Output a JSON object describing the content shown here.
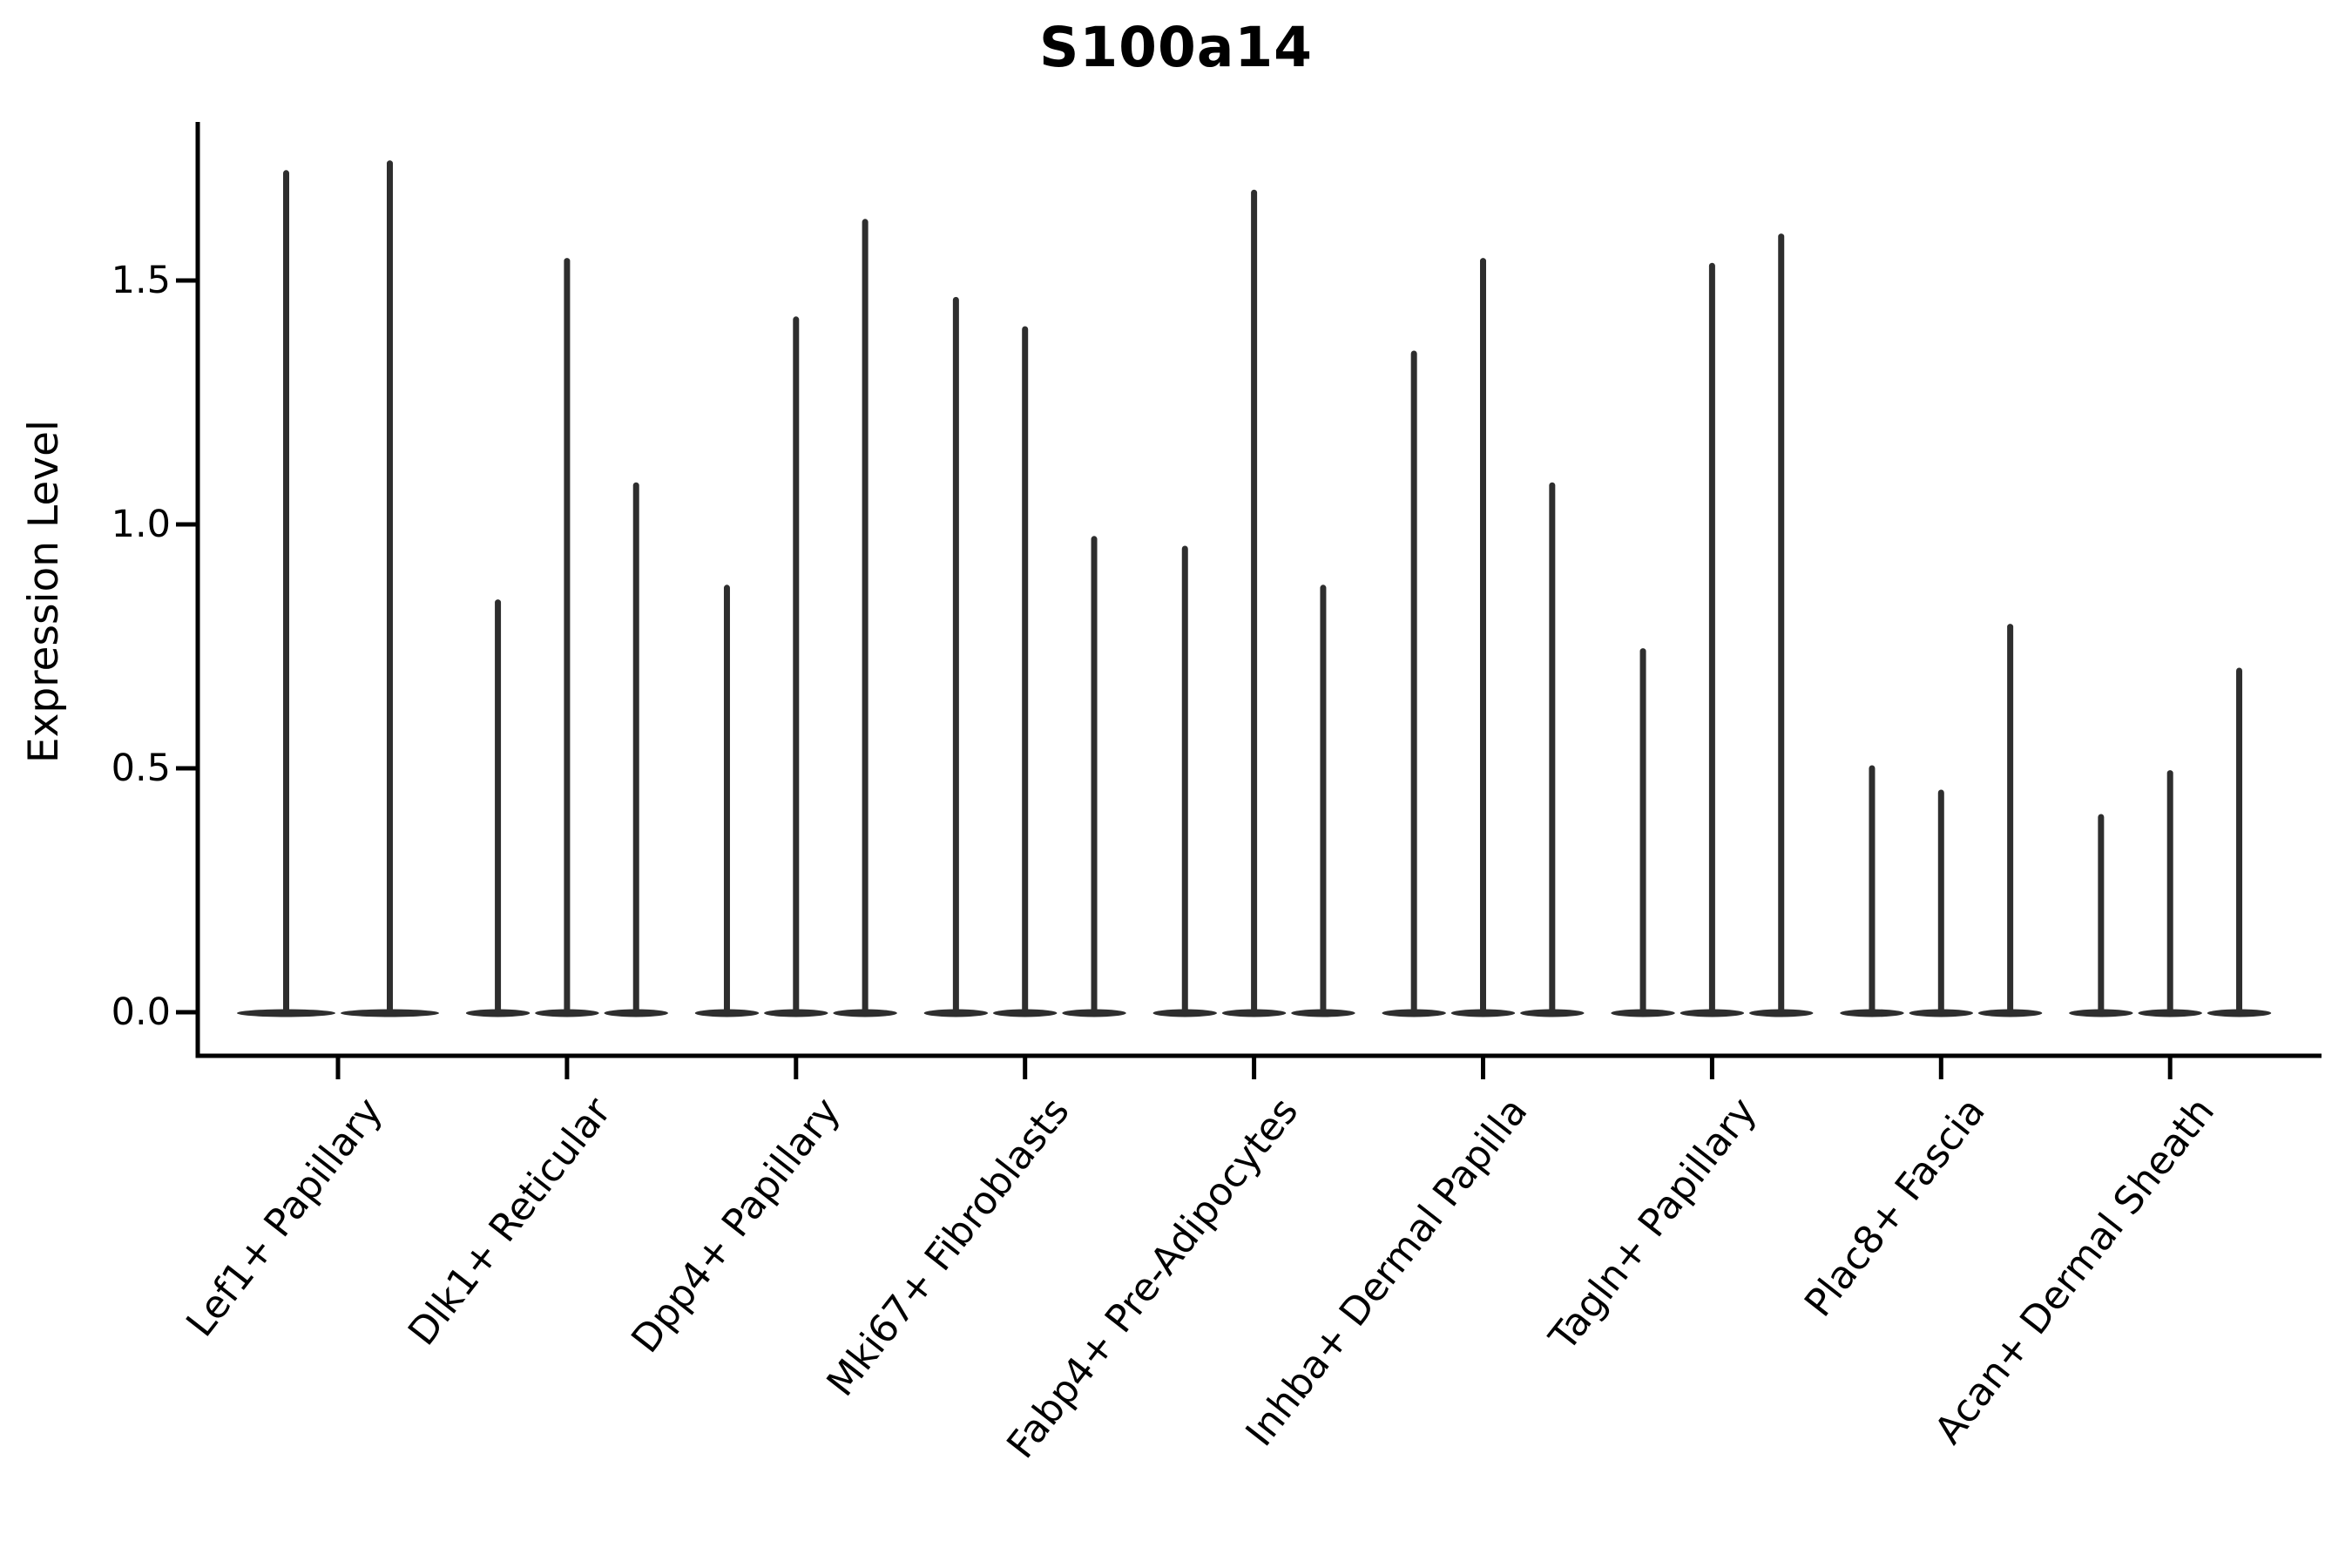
{
  "chart_data": {
    "type": "violin",
    "title": "S100a14",
    "ylabel": "Expression Level",
    "xlabel": "",
    "ylim": [
      0,
      1.83
    ],
    "yticks": [
      {
        "label": "0.0",
        "value": 0.0
      },
      {
        "label": "0.5",
        "value": 0.5
      },
      {
        "label": "1.0",
        "value": 1.0
      },
      {
        "label": "1.5",
        "value": 1.5
      }
    ],
    "grid": false,
    "legend": null,
    "violin_style": "density mass concentrated at 0 with a thin spike rising to each violin's maximum expression value",
    "groups": [
      {
        "category": "Lef1+ Papillary",
        "violin_maxima": [
          1.72,
          1.74
        ]
      },
      {
        "category": "Dlk1+ Reticular",
        "violin_maxima": [
          0.84,
          1.54,
          1.08
        ]
      },
      {
        "category": "Dpp4+ Papillary",
        "violin_maxima": [
          0.87,
          1.42,
          1.62
        ]
      },
      {
        "category": "Mki67+ Fibroblasts",
        "violin_maxima": [
          1.46,
          1.4,
          0.97
        ]
      },
      {
        "category": "Fabp4+ Pre-Adipocytes",
        "violin_maxima": [
          0.95,
          1.68,
          0.87
        ]
      },
      {
        "category": "Inhba+ Dermal Papilla",
        "violin_maxima": [
          1.35,
          1.54,
          1.08
        ]
      },
      {
        "category": "Tagln+ Papillary",
        "violin_maxima": [
          0.74,
          1.53,
          1.59
        ]
      },
      {
        "category": "Plac8+ Fascia",
        "violin_maxima": [
          0.5,
          0.45,
          0.79
        ]
      },
      {
        "category": "Acan+ Dermal Sheath",
        "violin_maxima": [
          0.4,
          0.49,
          0.7
        ]
      }
    ],
    "colors": {
      "background": "#ffffff",
      "violin": "#2e2e2e",
      "axis": "#000000",
      "text": "#000000"
    }
  }
}
